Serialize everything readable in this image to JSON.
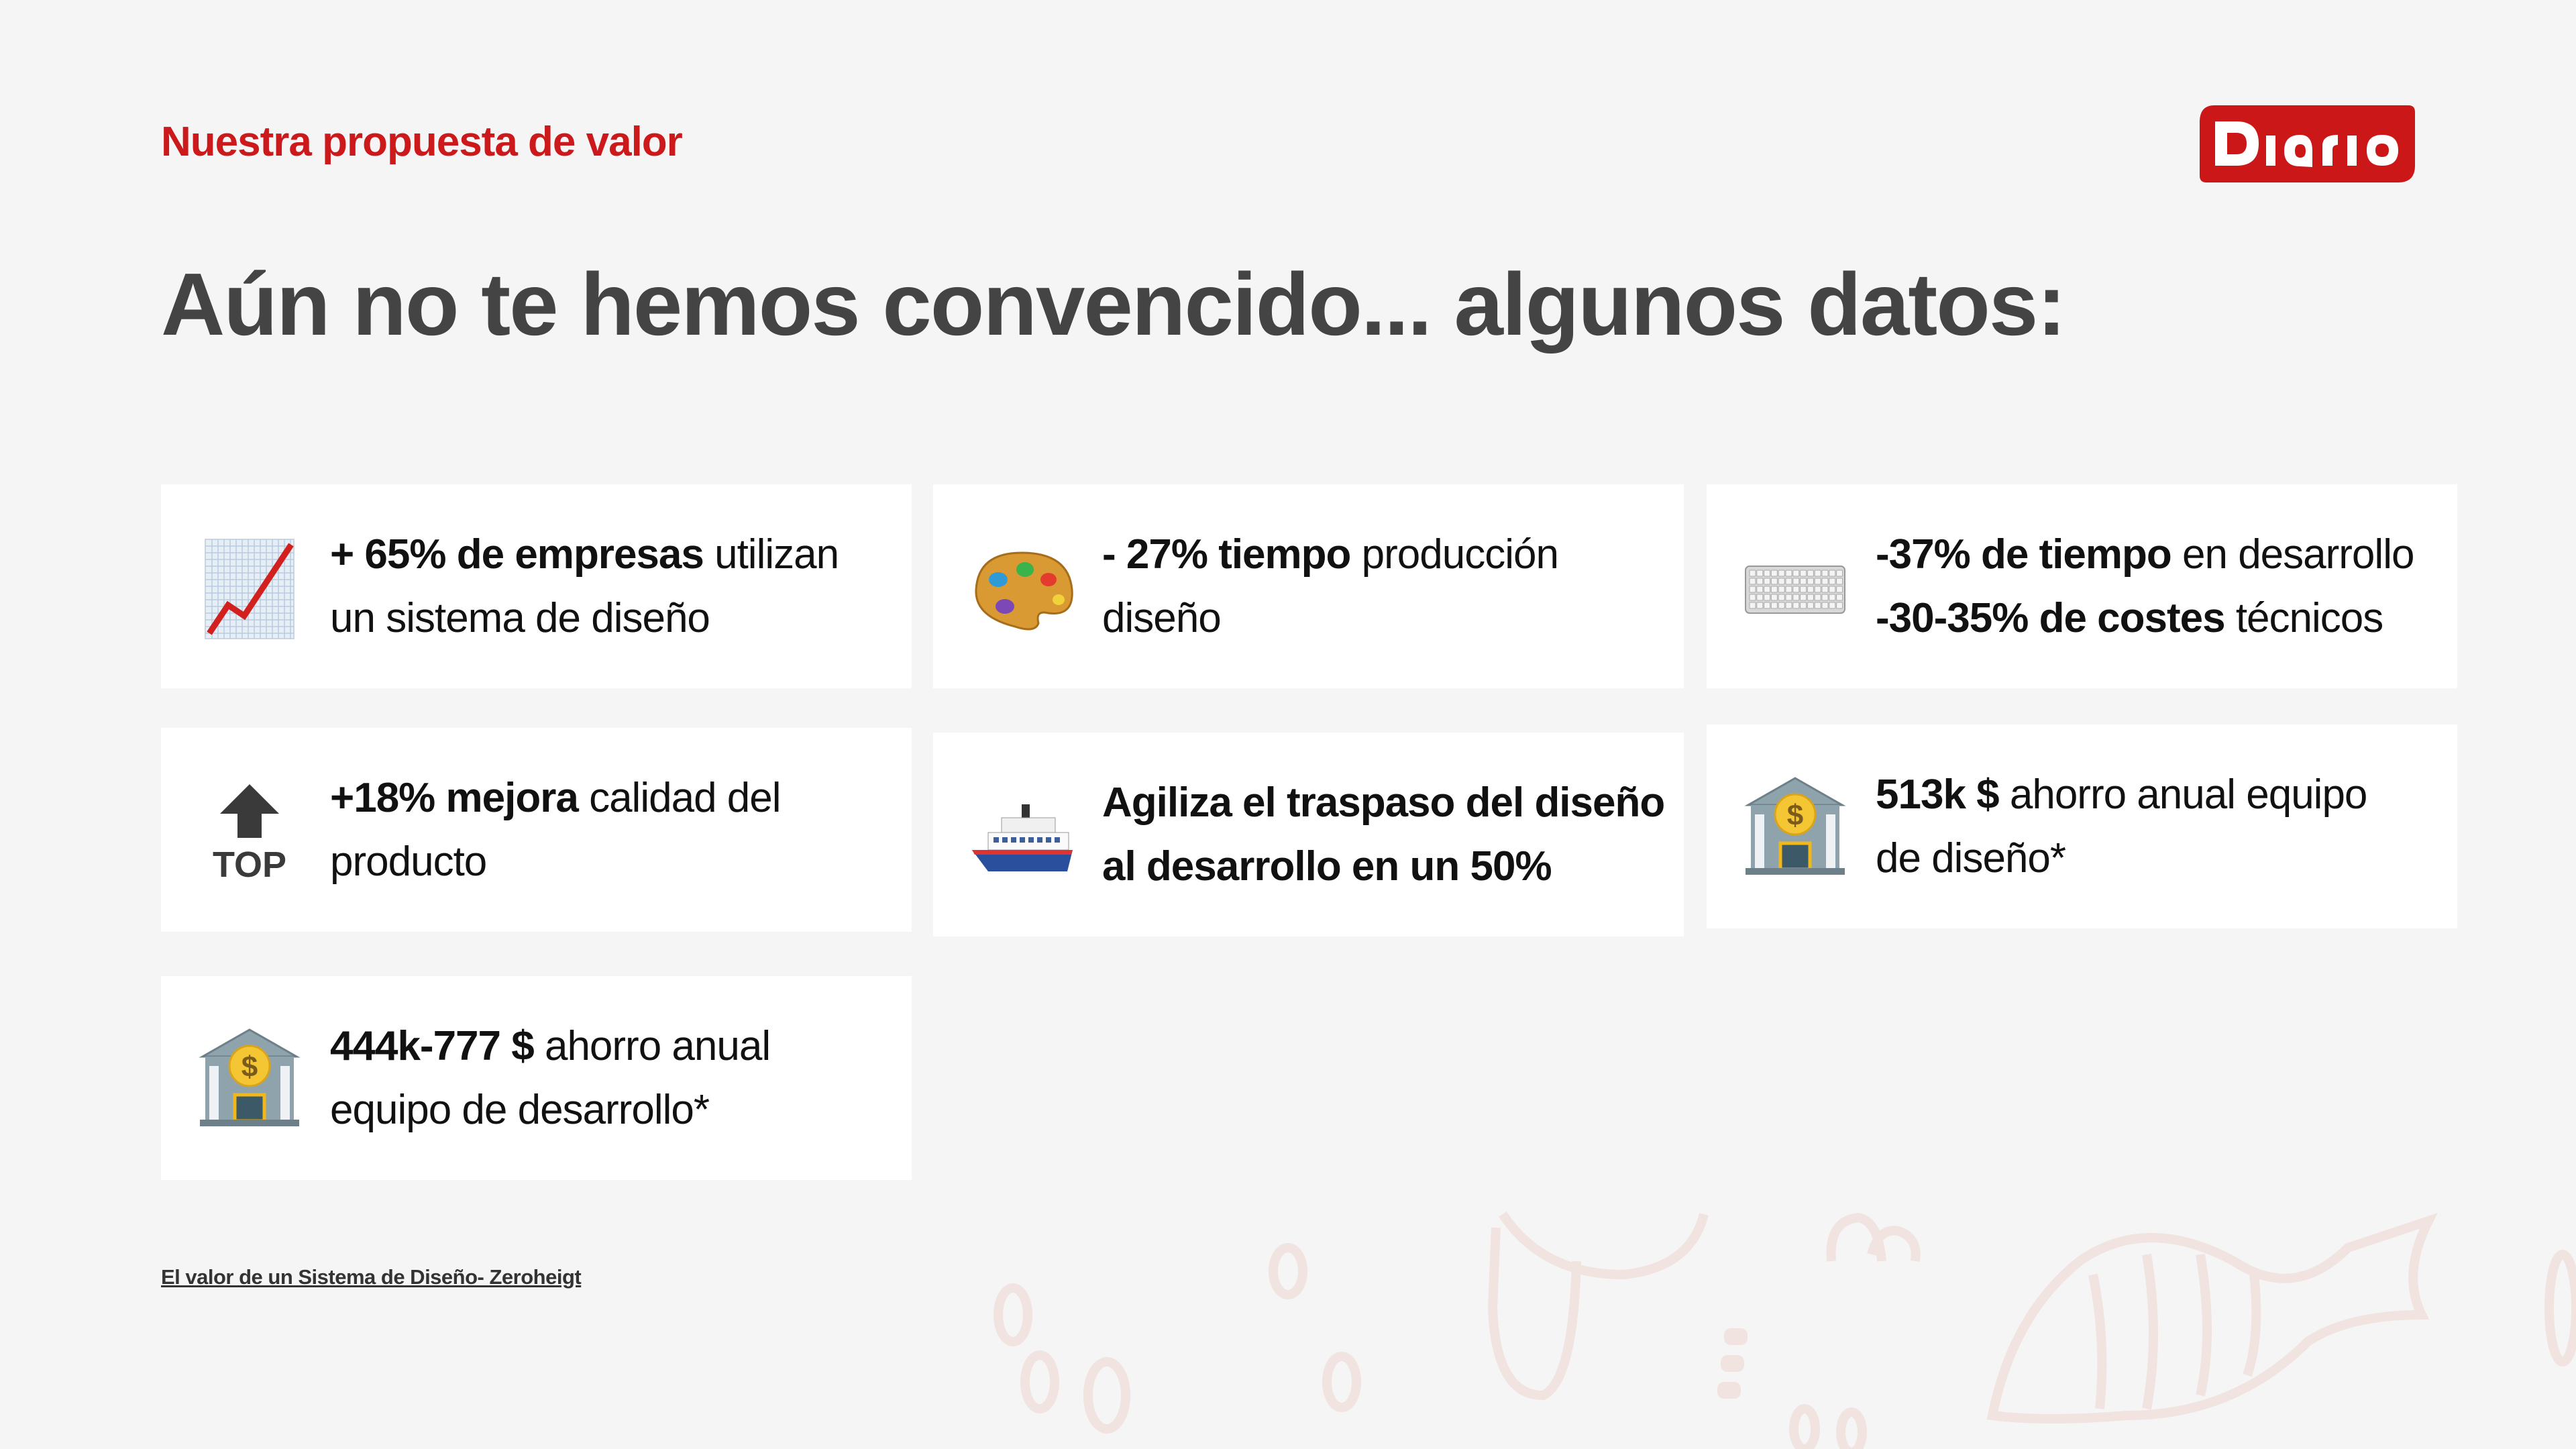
{
  "header": {
    "kicker": "Nuestra propuesta de valor",
    "title": "Aún no te hemos convencido... algunos datos:",
    "logo_text": "Diario",
    "logo_color": "#cc1719"
  },
  "cards": [
    {
      "icon": "chart-increasing-icon",
      "lines": [
        [
          {
            "t": "+ 65% de empresas",
            "b": true
          },
          {
            "t": " utilizan",
            "b": false
          }
        ],
        [
          {
            "t": "un sistema de diseño",
            "b": false
          }
        ]
      ]
    },
    {
      "icon": "artist-palette-icon",
      "lines": [
        [
          {
            "t": "- 27% tiempo",
            "b": true
          },
          {
            "t": " producción",
            "b": false
          }
        ],
        [
          {
            "t": "diseño",
            "b": false
          }
        ]
      ]
    },
    {
      "icon": "keyboard-icon",
      "lines": [
        [
          {
            "t": "-37% de tiempo",
            "b": true
          },
          {
            "t": " en desarrollo",
            "b": false
          }
        ],
        [
          {
            "t": "-30-35% de costes",
            "b": true
          },
          {
            "t": " técnicos",
            "b": false
          }
        ]
      ]
    },
    {
      "icon": "top-arrow-icon",
      "icon_label": "TOP",
      "lines": [
        [
          {
            "t": "+18% mejora",
            "b": true
          },
          {
            "t": " calidad del",
            "b": false
          }
        ],
        [
          {
            "t": "producto",
            "b": false
          }
        ]
      ]
    },
    {
      "icon": "ship-icon",
      "lines": [
        [
          {
            "t": "Agiliza el traspaso del diseño",
            "b": true
          }
        ],
        [
          {
            "t": "al desarrollo en un 50%",
            "b": true
          }
        ]
      ]
    },
    {
      "icon": "bank-icon",
      "lines": [
        [
          {
            "t": "513k $",
            "b": true
          },
          {
            "t": " ahorro anual equipo",
            "b": false
          }
        ],
        [
          {
            "t": "de diseño*",
            "b": false
          }
        ]
      ]
    },
    {
      "icon": "bank-icon",
      "lines": [
        [
          {
            "t": "444k-777 $",
            "b": true
          },
          {
            "t": " ahorro anual",
            "b": false
          }
        ],
        [
          {
            "t": "equipo de desarrollo*",
            "b": false
          }
        ]
      ]
    }
  ],
  "footer": {
    "source_link": "El valor de un Sistema de Diseño- Zeroheigt"
  }
}
